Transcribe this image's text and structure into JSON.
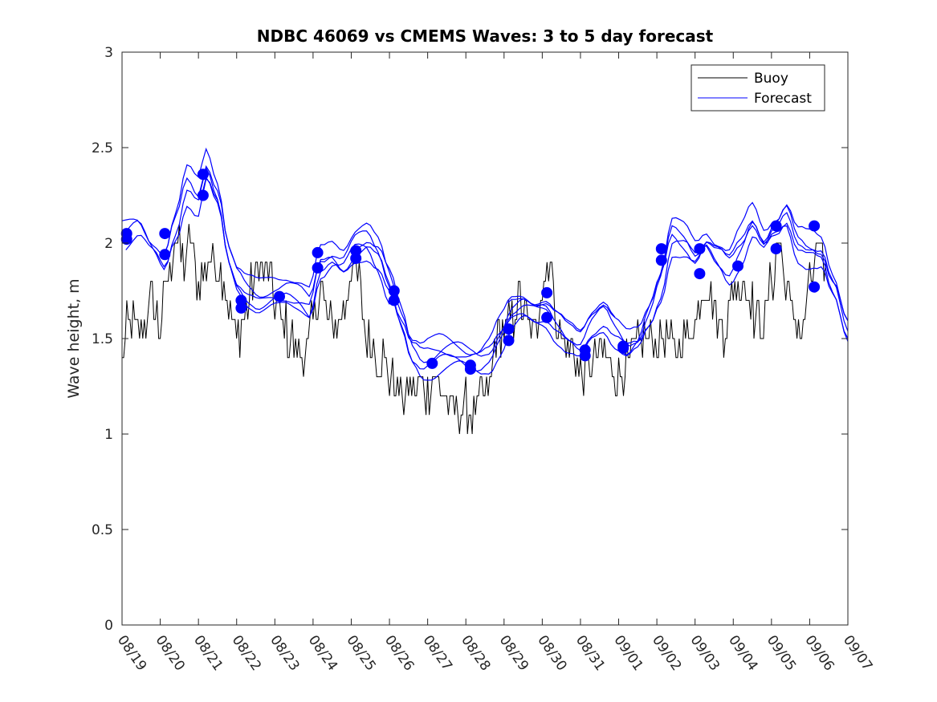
{
  "chart_data": {
    "type": "line",
    "title": "NDBC 46069 vs CMEMS Waves: 3 to 5 day forecast",
    "xlabel": "",
    "ylabel": "Wave height, m",
    "xlim": [
      0,
      19
    ],
    "ylim": [
      0,
      3
    ],
    "x_tick_labels": [
      "08/19",
      "08/20",
      "08/21",
      "08/22",
      "08/23",
      "08/24",
      "08/25",
      "08/26",
      "08/27",
      "08/28",
      "08/29",
      "08/30",
      "08/31",
      "09/01",
      "09/02",
      "09/03",
      "09/04",
      "09/05",
      "09/06",
      "09/07"
    ],
    "y_ticks": [
      0,
      0.5,
      1,
      1.5,
      2,
      2.5,
      3
    ],
    "y_tick_labels": [
      "0",
      "0.5",
      "1",
      "1.5",
      "2",
      "2.5",
      "3"
    ],
    "x_units": "days since 08/19",
    "legend": {
      "position": "top-right",
      "entries": [
        {
          "label": "Buoy",
          "color": "#000000"
        },
        {
          "label": "Forecast",
          "color": "#0000ff"
        }
      ]
    },
    "colors": {
      "buoy": "#000000",
      "forecast": "#0000ff",
      "axes": "#262626"
    },
    "buoy_anchors": [
      [
        0,
        1.35
      ],
      [
        0.15,
        1.6
      ],
      [
        0.4,
        1.55
      ],
      [
        0.6,
        1.6
      ],
      [
        0.8,
        1.7
      ],
      [
        1.0,
        1.55
      ],
      [
        1.2,
        1.85
      ],
      [
        1.4,
        2.0
      ],
      [
        1.6,
        1.9
      ],
      [
        1.8,
        2.0
      ],
      [
        2.0,
        1.8
      ],
      [
        2.2,
        1.9
      ],
      [
        2.4,
        1.9
      ],
      [
        2.6,
        1.85
      ],
      [
        2.8,
        1.65
      ],
      [
        3.0,
        1.5
      ],
      [
        3.2,
        1.6
      ],
      [
        3.4,
        1.8
      ],
      [
        3.6,
        1.9
      ],
      [
        3.8,
        1.85
      ],
      [
        4.0,
        1.7
      ],
      [
        4.2,
        1.6
      ],
      [
        4.4,
        1.5
      ],
      [
        4.6,
        1.45
      ],
      [
        4.8,
        1.4
      ],
      [
        5.0,
        1.6
      ],
      [
        5.2,
        1.75
      ],
      [
        5.4,
        1.6
      ],
      [
        5.6,
        1.55
      ],
      [
        5.8,
        1.65
      ],
      [
        6.0,
        1.85
      ],
      [
        6.2,
        1.8
      ],
      [
        6.4,
        1.5
      ],
      [
        6.6,
        1.45
      ],
      [
        6.8,
        1.4
      ],
      [
        7.0,
        1.3
      ],
      [
        7.2,
        1.25
      ],
      [
        7.4,
        1.2
      ],
      [
        7.6,
        1.22
      ],
      [
        7.8,
        1.25
      ],
      [
        8.0,
        1.2
      ],
      [
        8.2,
        1.3
      ],
      [
        8.4,
        1.2
      ],
      [
        8.6,
        1.15
      ],
      [
        8.8,
        1.15
      ],
      [
        9.0,
        1.15
      ],
      [
        9.2,
        1.1
      ],
      [
        9.4,
        1.2
      ],
      [
        9.6,
        1.2
      ],
      [
        9.8,
        1.5
      ],
      [
        10.0,
        1.55
      ],
      [
        10.2,
        1.6
      ],
      [
        10.4,
        1.7
      ],
      [
        10.6,
        1.6
      ],
      [
        10.8,
        1.5
      ],
      [
        11.0,
        1.8
      ],
      [
        11.2,
        1.9
      ],
      [
        11.4,
        1.55
      ],
      [
        11.6,
        1.45
      ],
      [
        11.8,
        1.45
      ],
      [
        12.0,
        1.3
      ],
      [
        12.2,
        1.3
      ],
      [
        12.4,
        1.4
      ],
      [
        12.6,
        1.45
      ],
      [
        12.8,
        1.35
      ],
      [
        13.0,
        1.3
      ],
      [
        13.2,
        1.35
      ],
      [
        13.4,
        1.4
      ],
      [
        13.6,
        1.5
      ],
      [
        13.8,
        1.5
      ],
      [
        14.0,
        1.5
      ],
      [
        14.2,
        1.55
      ],
      [
        14.4,
        1.45
      ],
      [
        14.6,
        1.45
      ],
      [
        14.8,
        1.5
      ],
      [
        15.0,
        1.6
      ],
      [
        15.2,
        1.8
      ],
      [
        15.4,
        1.75
      ],
      [
        15.6,
        1.6
      ],
      [
        15.8,
        1.55
      ],
      [
        16.0,
        1.75
      ],
      [
        16.2,
        1.8
      ],
      [
        16.4,
        1.75
      ],
      [
        16.6,
        1.6
      ],
      [
        16.8,
        1.6
      ],
      [
        17.0,
        1.8
      ],
      [
        17.2,
        2.0
      ],
      [
        17.4,
        1.75
      ],
      [
        17.6,
        1.6
      ],
      [
        17.8,
        1.55
      ],
      [
        18.0,
        1.8
      ],
      [
        18.2,
        1.95
      ],
      [
        18.4,
        1.85
      ]
    ],
    "buoy_noise": 0.07,
    "forecast_anchors": [
      [
        0,
        2.03
      ],
      [
        0.4,
        2.05
      ],
      [
        0.8,
        1.95
      ],
      [
        1.1,
        1.9
      ],
      [
        1.4,
        2.1
      ],
      [
        1.7,
        2.3
      ],
      [
        2.0,
        2.2
      ],
      [
        2.2,
        2.35
      ],
      [
        2.5,
        2.2
      ],
      [
        2.8,
        1.9
      ],
      [
        3.0,
        1.8
      ],
      [
        3.3,
        1.75
      ],
      [
        3.6,
        1.72
      ],
      [
        3.9,
        1.72
      ],
      [
        4.2,
        1.7
      ],
      [
        4.6,
        1.67
      ],
      [
        4.9,
        1.65
      ],
      [
        5.2,
        1.9
      ],
      [
        5.5,
        1.95
      ],
      [
        5.8,
        1.9
      ],
      [
        6.1,
        1.95
      ],
      [
        6.4,
        1.95
      ],
      [
        6.7,
        1.88
      ],
      [
        7.0,
        1.75
      ],
      [
        7.3,
        1.6
      ],
      [
        7.6,
        1.45
      ],
      [
        7.9,
        1.38
      ],
      [
        8.2,
        1.36
      ],
      [
        8.6,
        1.35
      ],
      [
        9.0,
        1.36
      ],
      [
        9.3,
        1.38
      ],
      [
        9.6,
        1.42
      ],
      [
        9.9,
        1.5
      ],
      [
        10.2,
        1.58
      ],
      [
        10.5,
        1.6
      ],
      [
        10.8,
        1.58
      ],
      [
        11.1,
        1.6
      ],
      [
        11.4,
        1.55
      ],
      [
        11.7,
        1.5
      ],
      [
        12.0,
        1.45
      ],
      [
        12.3,
        1.52
      ],
      [
        12.6,
        1.55
      ],
      [
        12.9,
        1.48
      ],
      [
        13.2,
        1.45
      ],
      [
        13.5,
        1.5
      ],
      [
        13.8,
        1.62
      ],
      [
        14.1,
        1.75
      ],
      [
        14.4,
        1.98
      ],
      [
        14.7,
        1.95
      ],
      [
        15.0,
        1.9
      ],
      [
        15.3,
        2.0
      ],
      [
        15.6,
        1.95
      ],
      [
        15.9,
        1.88
      ],
      [
        16.2,
        1.95
      ],
      [
        16.5,
        2.05
      ],
      [
        16.8,
        1.95
      ],
      [
        17.1,
        2.05
      ],
      [
        17.4,
        2.15
      ],
      [
        17.7,
        2.0
      ],
      [
        18.0,
        1.95
      ],
      [
        18.3,
        1.9
      ],
      [
        18.6,
        1.72
      ],
      [
        19.0,
        1.5
      ]
    ],
    "forecast_runs": [
      {
        "start": 0.0,
        "end": 19.0,
        "offset": 0.0,
        "phase": 0.0
      },
      {
        "start": 0.0,
        "end": 19.0,
        "offset": 0.05,
        "phase": 0.12
      },
      {
        "start": 0.1,
        "end": 19.0,
        "offset": -0.04,
        "phase": -0.1
      },
      {
        "start": 1.1,
        "end": 19.0,
        "offset": 0.1,
        "phase": 0.2
      },
      {
        "start": 2.1,
        "end": 7.0,
        "offset": -0.02,
        "phase": 0.3
      },
      {
        "start": 6.1,
        "end": 11.2,
        "offset": 0.06,
        "phase": -0.15
      },
      {
        "start": 10.1,
        "end": 12.9,
        "offset": 0.1,
        "phase": 0.25
      },
      {
        "start": 13.1,
        "end": 19.0,
        "offset": 0.03,
        "phase": 0.35
      }
    ],
    "forecast_markers": [
      [
        0.12,
        2.05
      ],
      [
        0.12,
        2.02
      ],
      [
        1.12,
        2.05
      ],
      [
        1.12,
        1.94
      ],
      [
        2.12,
        2.36
      ],
      [
        2.12,
        2.25
      ],
      [
        3.12,
        1.7
      ],
      [
        3.12,
        1.66
      ],
      [
        4.12,
        1.72
      ],
      [
        5.12,
        1.95
      ],
      [
        5.12,
        1.87
      ],
      [
        6.12,
        1.96
      ],
      [
        6.12,
        1.92
      ],
      [
        7.12,
        1.75
      ],
      [
        7.12,
        1.7
      ],
      [
        8.12,
        1.37
      ],
      [
        9.12,
        1.36
      ],
      [
        9.12,
        1.34
      ],
      [
        10.12,
        1.55
      ],
      [
        10.12,
        1.49
      ],
      [
        11.12,
        1.74
      ],
      [
        11.12,
        1.61
      ],
      [
        12.12,
        1.44
      ],
      [
        12.12,
        1.41
      ],
      [
        13.12,
        1.46
      ],
      [
        13.12,
        1.45
      ],
      [
        14.12,
        1.97
      ],
      [
        14.12,
        1.91
      ],
      [
        15.12,
        1.97
      ],
      [
        15.12,
        1.84
      ],
      [
        16.12,
        1.88
      ],
      [
        17.12,
        2.09
      ],
      [
        17.12,
        1.97
      ],
      [
        18.12,
        2.09
      ],
      [
        18.12,
        1.77
      ]
    ]
  }
}
